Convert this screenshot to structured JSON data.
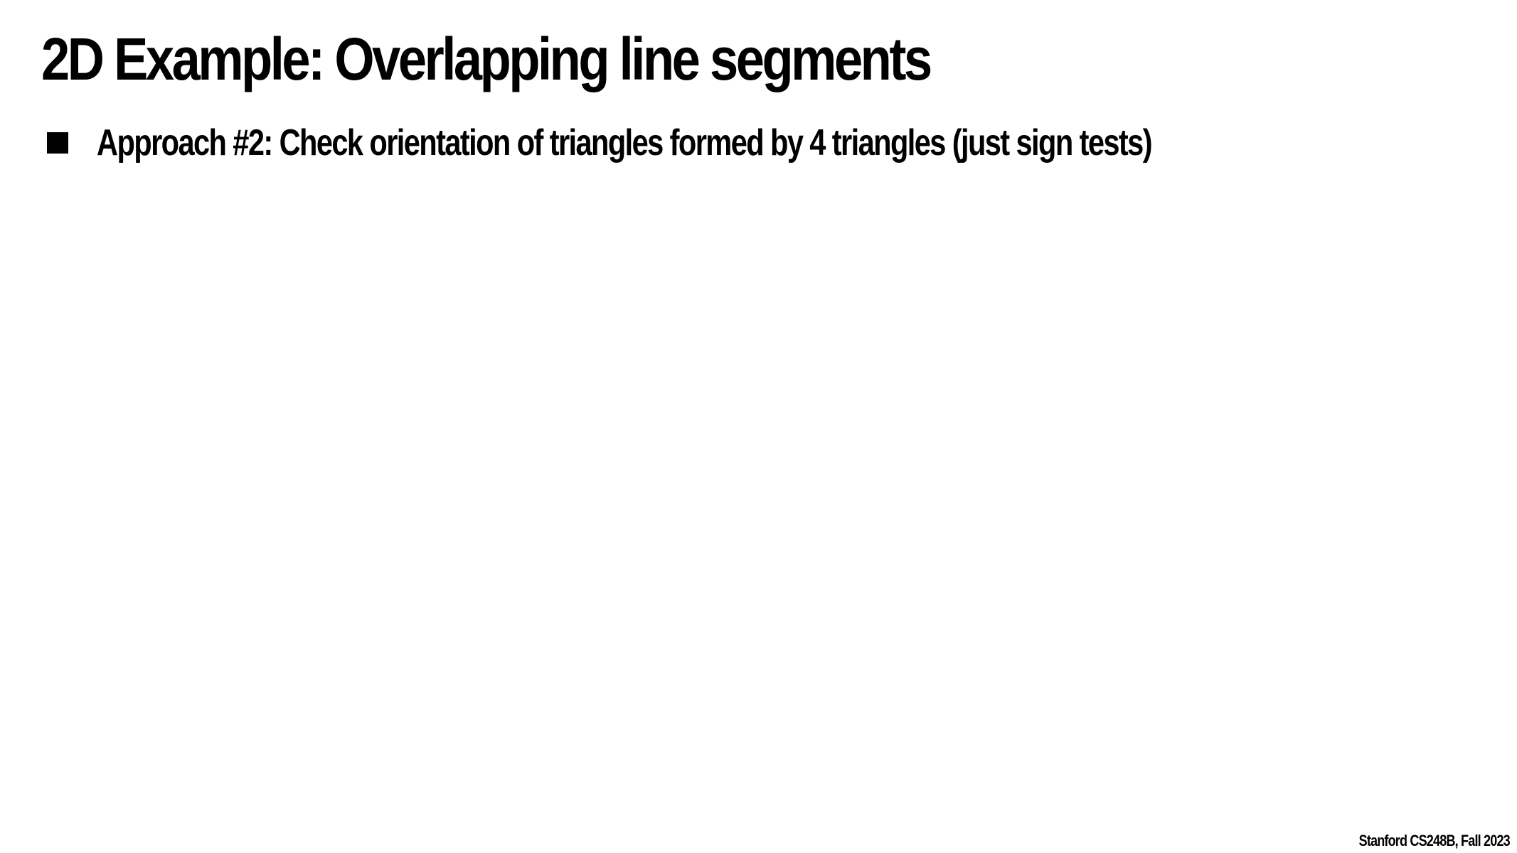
{
  "slide": {
    "title": "2D Example: Overlapping line segments",
    "bullets": [
      "Approach #2: Check orientation of triangles formed by 4 triangles (just sign tests)"
    ],
    "footer": "Stanford CS248B, Fall 2023"
  }
}
